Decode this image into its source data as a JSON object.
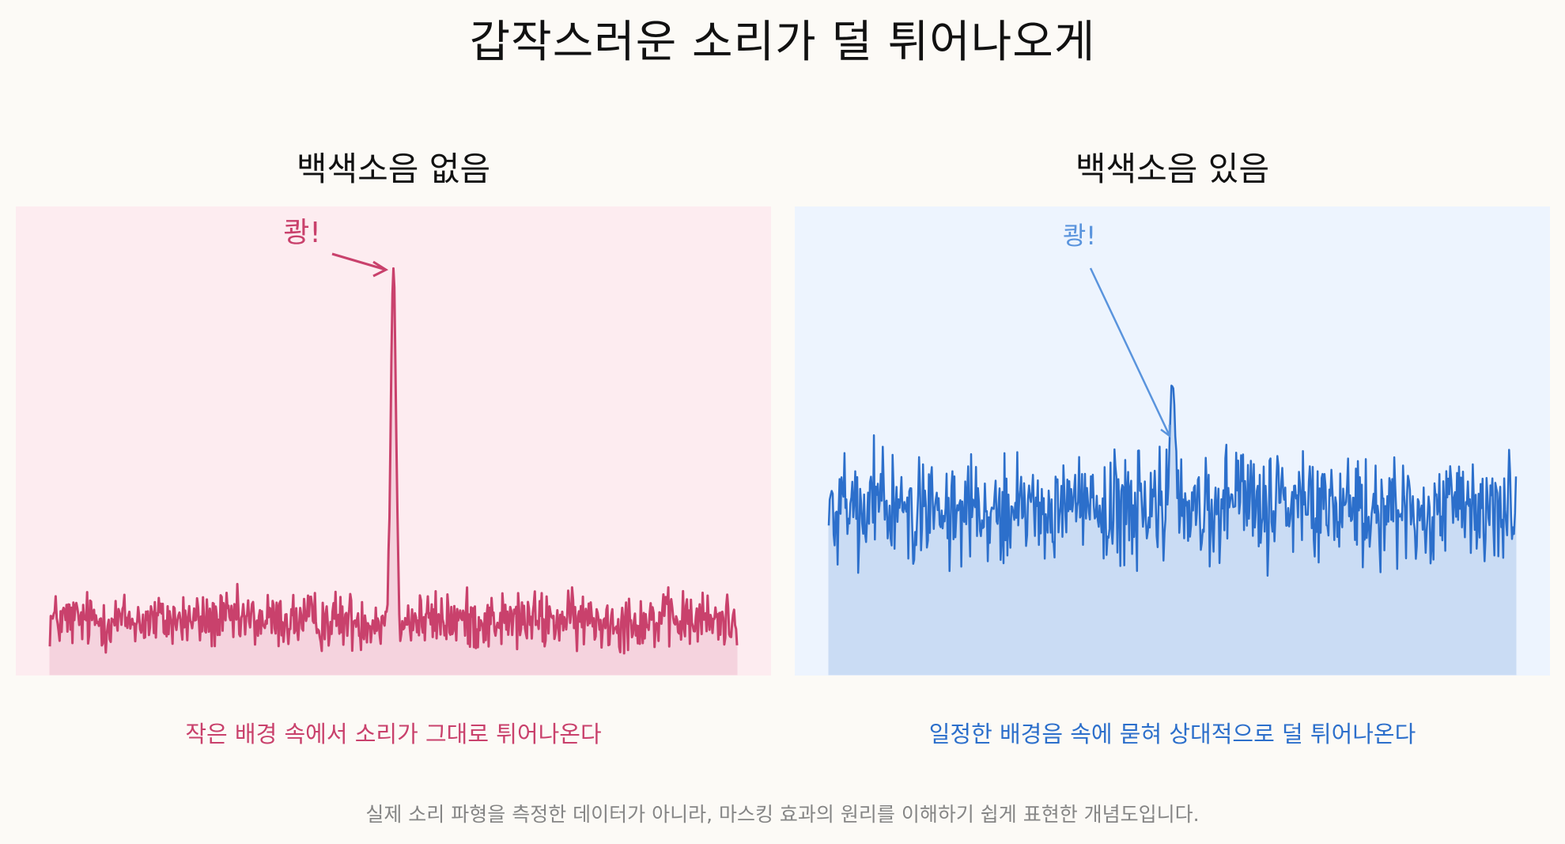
{
  "title": "갑작스러운 소리가 덜 튀어나오게",
  "footnote": "실제 소리 파형을 측정한 데이터가 아니라, 마스킹 효과의 원리를 이해하기 쉽게 표현한 개념도입니다.",
  "colors": {
    "left_line": "#c9416c",
    "left_fill": "#f5d3de",
    "left_bg": "#fdecf0",
    "right_line": "#2c6fcb",
    "right_fill": "#cadcf4",
    "right_bg": "#edf4fe",
    "right_annotation": "#5a94dd"
  },
  "chart_data": [
    {
      "type": "area",
      "title": "백색소음 없음",
      "caption": "작은 배경 속에서 소리가 그대로 튀어나온다",
      "annotation": "쾅!",
      "x_range": [
        0,
        700
      ],
      "ylim": [
        0,
        100
      ],
      "background_level": 12,
      "background_spread": 5,
      "spike": {
        "x": 350,
        "peak": 90
      },
      "grid": false,
      "legend": "none"
    },
    {
      "type": "area",
      "title": "백색소음 있음",
      "caption": "일정한 배경음 속에 묻혀 상대적으로 덜 튀어나온다",
      "annotation": "쾅!",
      "x_range": [
        0,
        700
      ],
      "ylim": [
        0,
        100
      ],
      "background_level": 37,
      "background_spread": 9,
      "spike": {
        "x": 350,
        "peak": 64
      },
      "grid": false,
      "legend": "none"
    }
  ]
}
